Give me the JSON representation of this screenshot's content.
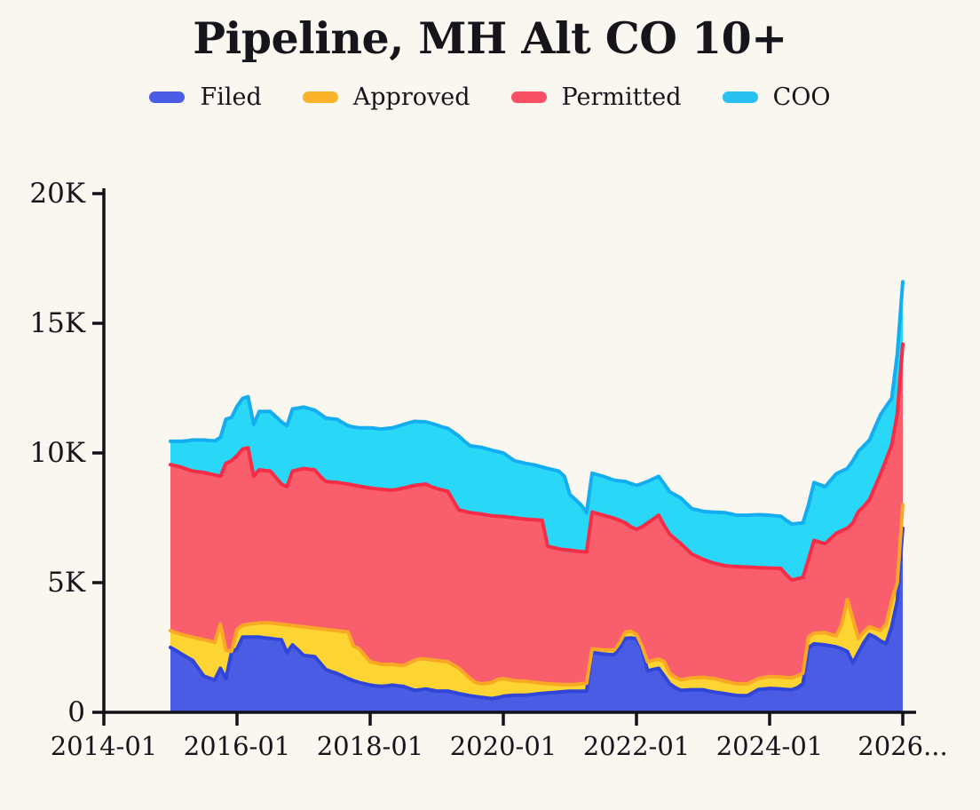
{
  "title": "Pipeline, MH Alt CO 10+",
  "colors": {
    "background": "#faf7f0",
    "text": "#16151b",
    "axis": "#121117"
  },
  "legend": [
    {
      "label": "Filed",
      "color": "#4a5be6"
    },
    {
      "label": "Approved",
      "color": "#fbb32a"
    },
    {
      "label": "Permitted",
      "color": "#f75064"
    },
    {
      "label": "COO",
      "color": "#29c1f2"
    }
  ],
  "chart_data": {
    "type": "area",
    "stacked": true,
    "title": "Pipeline, MH Alt CO 10+",
    "xlabel": "",
    "ylabel": "",
    "grid": false,
    "legend_position": "top",
    "ylim": [
      0,
      20000
    ],
    "y_ticks": [
      {
        "value": 0,
        "label": "0"
      },
      {
        "value": 5000,
        "label": "5K"
      },
      {
        "value": 10000,
        "label": "10K"
      },
      {
        "value": 15000,
        "label": "15K"
      },
      {
        "value": 20000,
        "label": "20K"
      }
    ],
    "x_ticks": [
      "2014-01",
      "2016-01",
      "2018-01",
      "2020-01",
      "2022-01",
      "2024-01",
      "2026..."
    ],
    "x_start": "2015-01",
    "x_step_months": 1,
    "series": [
      {
        "name": "Filed",
        "fill": "#4a5ce4",
        "stroke": "#2f46d8",
        "values": [
          2500,
          2380,
          2250,
          2120,
          2000,
          1700,
          1400,
          1320,
          1250,
          1700,
          1300,
          2300,
          2450,
          2900,
          2900,
          2900,
          2900,
          2870,
          2850,
          2820,
          2800,
          2300,
          2600,
          2400,
          2200,
          2170,
          2150,
          1900,
          1650,
          1570,
          1500,
          1400,
          1300,
          1220,
          1150,
          1100,
          1050,
          1020,
          1000,
          1020,
          1050,
          1020,
          1000,
          920,
          850,
          870,
          900,
          860,
          820,
          820,
          820,
          770,
          720,
          680,
          640,
          610,
          580,
          550,
          530,
          570,
          620,
          640,
          660,
          660,
          660,
          680,
          710,
          730,
          750,
          760,
          780,
          800,
          810,
          810,
          810,
          810,
          2300,
          2280,
          2250,
          2230,
          2220,
          2500,
          2850,
          2870,
          2840,
          2450,
          1600,
          1650,
          1700,
          1400,
          1100,
          950,
          850,
          860,
          870,
          870,
          870,
          820,
          780,
          750,
          720,
          680,
          650,
          640,
          640,
          760,
          880,
          900,
          920,
          910,
          900,
          880,
          870,
          950,
          1100,
          2500,
          2640,
          2620,
          2600,
          2560,
          2520,
          2450,
          2350,
          1900,
          2300,
          2700,
          3000,
          2900,
          2750,
          2650,
          3300,
          4300,
          7100
        ]
      },
      {
        "name": "Approved",
        "fill": "#fed433",
        "stroke": "#f9a826",
        "values": [
          650,
          690,
          750,
          830,
          900,
          1150,
          1400,
          1430,
          1450,
          1700,
          1100,
          50,
          750,
          450,
          500,
          520,
          550,
          580,
          600,
          600,
          600,
          1070,
          750,
          920,
          1100,
          1100,
          1100,
          1320,
          1550,
          1600,
          1650,
          1720,
          1800,
          1330,
          1300,
          1100,
          900,
          880,
          850,
          830,
          800,
          800,
          800,
          980,
          1150,
          1200,
          1150,
          1160,
          1180,
          1150,
          1130,
          1050,
          980,
          820,
          660,
          540,
          520,
          570,
          620,
          700,
          680,
          620,
          560,
          550,
          540,
          490,
          440,
          390,
          350,
          330,
          300,
          270,
          260,
          270,
          290,
          310,
          150,
          140,
          150,
          170,
          180,
          200,
          250,
          250,
          160,
          100,
          350,
          350,
          350,
          550,
          400,
          400,
          400,
          430,
          460,
          470,
          480,
          500,
          520,
          500,
          480,
          470,
          450,
          460,
          460,
          440,
          420,
          440,
          460,
          460,
          460,
          460,
          460,
          450,
          400,
          400,
          410,
          440,
          480,
          440,
          430,
          950,
          2000,
          1700,
          550,
          400,
          300,
          320,
          400,
          750,
          1000,
          700,
          900
        ]
      },
      {
        "name": "Permitted",
        "fill": "#f85e6c",
        "stroke": "#f72c46",
        "values": [
          6400,
          6430,
          6450,
          6420,
          6400,
          6420,
          6450,
          6450,
          6450,
          5700,
          7200,
          7350,
          6700,
          6800,
          6800,
          5680,
          5900,
          5870,
          5850,
          5630,
          5400,
          5330,
          5950,
          6030,
          6100,
          6100,
          6100,
          5880,
          5700,
          5710,
          5720,
          5710,
          5700,
          6210,
          6270,
          6480,
          6700,
          6720,
          6750,
          6730,
          6720,
          6780,
          6850,
          6800,
          6750,
          6700,
          6750,
          6680,
          6630,
          6600,
          6570,
          6330,
          6100,
          6250,
          6400,
          6520,
          6550,
          6490,
          6430,
          6290,
          6250,
          6260,
          6280,
          6260,
          6250,
          6260,
          6270,
          6280,
          5300,
          5260,
          5220,
          5200,
          5180,
          5140,
          5100,
          5060,
          5270,
          5240,
          5200,
          5140,
          5080,
          4700,
          4200,
          4030,
          4050,
          4600,
          5350,
          5450,
          5550,
          5250,
          5360,
          5330,
          5250,
          5010,
          4770,
          4660,
          4550,
          4500,
          4450,
          4450,
          4450,
          4480,
          4520,
          4510,
          4500,
          4390,
          4280,
          4230,
          4180,
          4180,
          4190,
          3960,
          3770,
          3750,
          3700,
          3000,
          3580,
          3500,
          3420,
          3700,
          3950,
          3600,
          2750,
          3700,
          4890,
          4850,
          4900,
          5480,
          6050,
          6350,
          6000,
          6500,
          6200
        ]
      },
      {
        "name": "COO",
        "fill": "#29d8f6",
        "stroke": "#14adf1",
        "values": [
          900,
          950,
          1000,
          1100,
          1200,
          1230,
          1250,
          1280,
          1320,
          1500,
          1700,
          1670,
          1900,
          1950,
          1970,
          2000,
          2250,
          2280,
          2300,
          2350,
          2400,
          2350,
          2400,
          2380,
          2370,
          2340,
          2300,
          2400,
          2450,
          2440,
          2430,
          2340,
          2250,
          2240,
          2250,
          2290,
          2320,
          2330,
          2320,
          2370,
          2400,
          2430,
          2450,
          2460,
          2470,
          2440,
          2400,
          2440,
          2450,
          2430,
          2430,
          2650,
          2850,
          2700,
          2580,
          2580,
          2570,
          2550,
          2520,
          2490,
          2450,
          2330,
          2200,
          2180,
          2150,
          2130,
          2100,
          2060,
          3000,
          3000,
          3000,
          2830,
          2150,
          1980,
          1800,
          1520,
          1500,
          1500,
          1500,
          1480,
          1470,
          1520,
          1600,
          1670,
          1700,
          1670,
          1600,
          1550,
          1500,
          1600,
          1640,
          1700,
          1760,
          1750,
          1750,
          1800,
          1850,
          1910,
          1970,
          2010,
          2050,
          2020,
          1980,
          1990,
          2000,
          2020,
          2040,
          2040,
          2040,
          2030,
          2010,
          2100,
          2160,
          2130,
          2100,
          2100,
          2230,
          2220,
          2200,
          2250,
          2300,
          2300,
          2300,
          2400,
          2320,
          2330,
          2300,
          2300,
          2280,
          2050,
          1800,
          2300,
          2400
        ]
      }
    ]
  }
}
